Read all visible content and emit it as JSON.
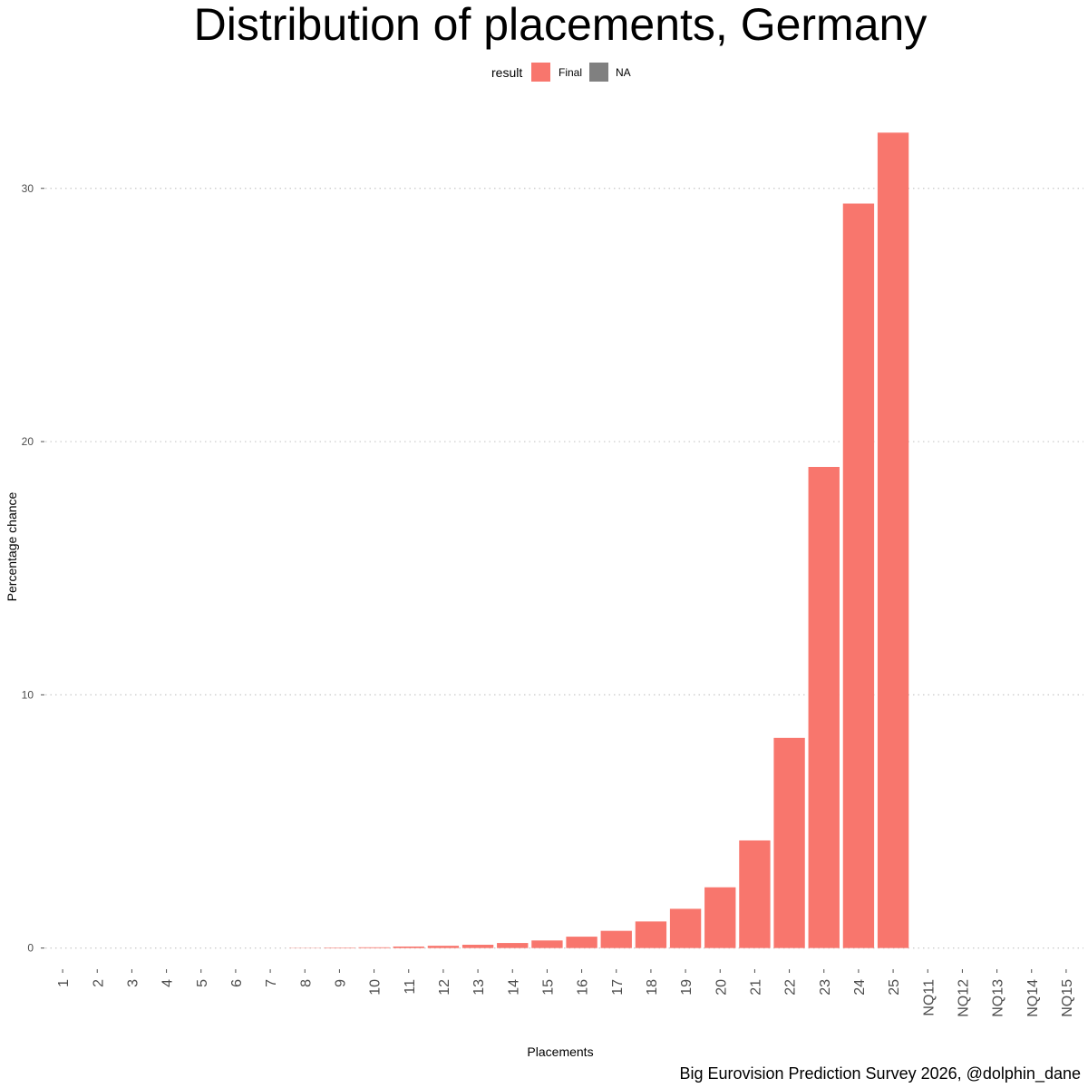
{
  "chart_data": {
    "type": "bar",
    "title": "Distribution of placements, Germany",
    "xlabel": "Placements",
    "ylabel": "Percentage chance",
    "caption": "Big Eurovision Prediction Survey 2026, @dolphin_dane",
    "legend": {
      "title": "result",
      "placement": "top",
      "entries": [
        {
          "label": "Final",
          "color": "#F8766D"
        },
        {
          "label": "NA",
          "color": "#808080"
        }
      ]
    },
    "categories": [
      "1",
      "2",
      "3",
      "4",
      "5",
      "6",
      "7",
      "8",
      "9",
      "10",
      "11",
      "12",
      "13",
      "14",
      "15",
      "16",
      "17",
      "18",
      "19",
      "20",
      "21",
      "22",
      "23",
      "24",
      "25",
      "NQ11",
      "NQ12",
      "NQ13",
      "NQ14",
      "NQ15"
    ],
    "series": [
      {
        "name": "Final",
        "color": "#F8766D",
        "values": [
          0,
          0,
          0,
          0,
          0,
          0,
          0,
          0.01,
          0.02,
          0.03,
          0.06,
          0.09,
          0.13,
          0.2,
          0.3,
          0.45,
          0.68,
          1.05,
          1.55,
          2.4,
          4.25,
          8.3,
          19.0,
          29.4,
          32.2,
          0,
          0,
          0,
          0,
          0
        ]
      }
    ],
    "yticks": [
      0,
      10,
      20,
      30
    ],
    "ylim": [
      -0.8,
      33.5
    ],
    "grid": {
      "horizontal_major": true,
      "vertical": false,
      "style": "dotted"
    }
  }
}
